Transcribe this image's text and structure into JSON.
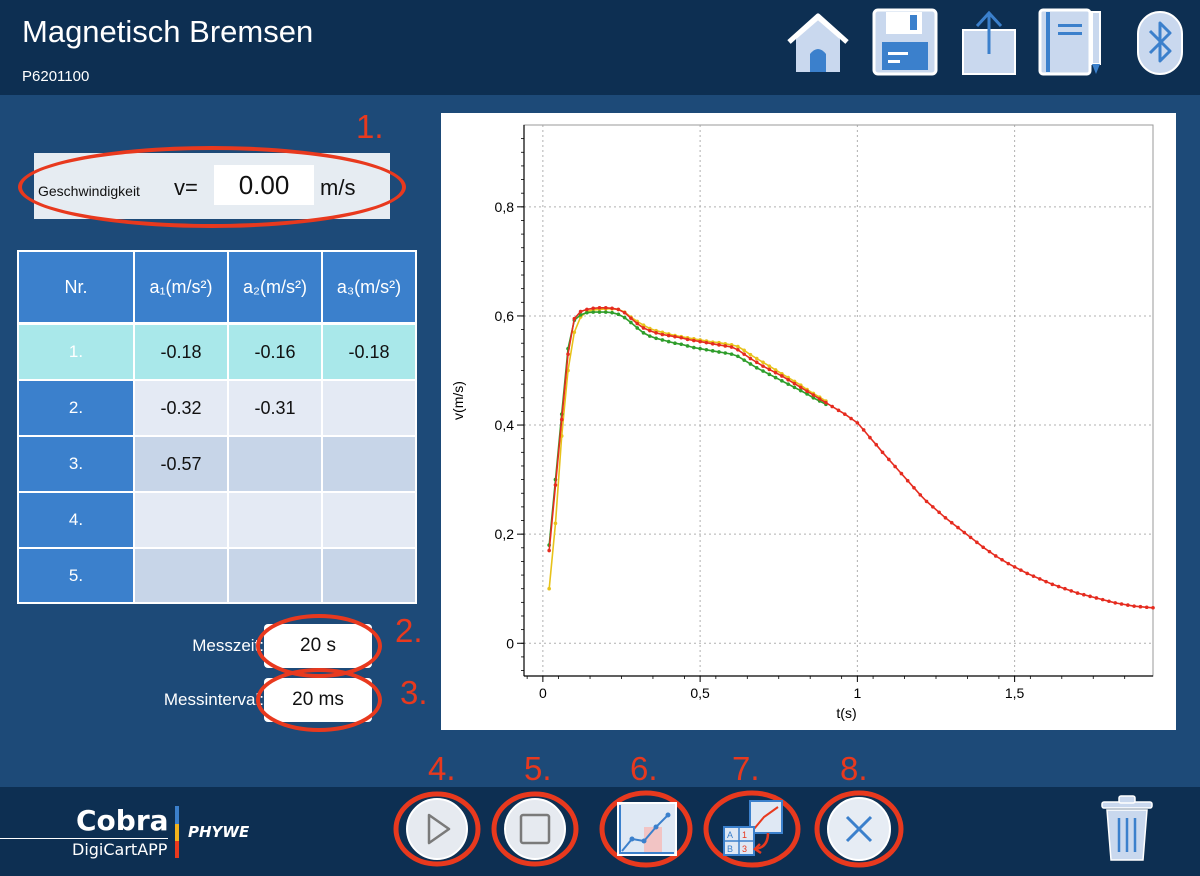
{
  "header": {
    "title": "Magnetisch Bremsen",
    "subtitle": "P6201100",
    "icons": [
      "home-icon",
      "save-icon",
      "export-icon",
      "notebook-icon",
      "bluetooth-icon"
    ]
  },
  "speed": {
    "label": "Geschwindigkeit",
    "var": "v=",
    "value": "0.00",
    "unit": "m/s"
  },
  "table": {
    "headers": [
      "Nr.",
      "a₁(m/s²)",
      "a₂(m/s²)",
      "a₃(m/s²)"
    ],
    "rows": [
      {
        "nr": "1.",
        "a1": "-0.18",
        "a2": "-0.16",
        "a3": "-0.18"
      },
      {
        "nr": "2.",
        "a1": "-0.32",
        "a2": "-0.31",
        "a3": ""
      },
      {
        "nr": "3.",
        "a1": "-0.57",
        "a2": "",
        "a3": ""
      },
      {
        "nr": "4.",
        "a1": "",
        "a2": "",
        "a3": ""
      },
      {
        "nr": "5.",
        "a1": "",
        "a2": "",
        "a3": ""
      }
    ]
  },
  "settings": {
    "messzeit_label": "Messzeit:",
    "messzeit_value": "20 s",
    "messinterval_label": "Messinterval:",
    "messinterval_value": "20 ms"
  },
  "annotations": [
    "1.",
    "2.",
    "3.",
    "4.",
    "5.",
    "6.",
    "7.",
    "8."
  ],
  "footer": {
    "logo_main": "Cobra",
    "logo_sub": "DigiCartAPP",
    "logo_brand": "PHYWE",
    "buttons": [
      "play-icon",
      "stop-icon",
      "graph-analysis-icon",
      "table-chart-icon",
      "close-icon",
      "trash-icon"
    ]
  },
  "colors": {
    "header_bg": "#0d2f52",
    "main_bg": "#1d4a78",
    "accent_blue": "#3b80cc",
    "annotation_red": "#e8391e",
    "series_red": "#e52b1f",
    "series_green": "#2e9d2a",
    "series_yellow": "#e7c21a"
  },
  "chart_data": {
    "type": "line",
    "xlabel": "t(s)",
    "ylabel": "v(m/s)",
    "xlim": [
      -0.06,
      1.94
    ],
    "ylim": [
      -0.06,
      0.95
    ],
    "xticks": [
      0,
      0.5,
      1,
      1.5
    ],
    "xtick_labels": [
      "0",
      "0,5",
      "1",
      "1,5"
    ],
    "yticks": [
      0,
      0.2,
      0.4,
      0.6,
      0.8
    ],
    "ytick_labels": [
      "0",
      "0,2",
      "0,4",
      "0,6",
      "0,8"
    ],
    "grid": true,
    "series": [
      {
        "color": "#e52b1f",
        "x": [
          0.02,
          0.04,
          0.06,
          0.08,
          0.1,
          0.12,
          0.14,
          0.16,
          0.18,
          0.2,
          0.22,
          0.24,
          0.26,
          0.28,
          0.3,
          0.32,
          0.34,
          0.36,
          0.38,
          0.4,
          0.42,
          0.44,
          0.46,
          0.48,
          0.5,
          0.52,
          0.54,
          0.56,
          0.58,
          0.6,
          0.62,
          0.64,
          0.66,
          0.68,
          0.7,
          0.72,
          0.74,
          0.76,
          0.78,
          0.8,
          0.82,
          0.84,
          0.86,
          0.88,
          0.9,
          0.92,
          0.94,
          0.96,
          0.98,
          1.0,
          1.02,
          1.04,
          1.06,
          1.08,
          1.1,
          1.12,
          1.14,
          1.16,
          1.18,
          1.2,
          1.22,
          1.24,
          1.26,
          1.28,
          1.3,
          1.32,
          1.34,
          1.36,
          1.38,
          1.4,
          1.42,
          1.44,
          1.46,
          1.48,
          1.5,
          1.52,
          1.54,
          1.56,
          1.58,
          1.6,
          1.62,
          1.64,
          1.66,
          1.68,
          1.7,
          1.72,
          1.74,
          1.76,
          1.78,
          1.8,
          1.82,
          1.84,
          1.86,
          1.88,
          1.9,
          1.92,
          1.94
        ],
        "y": [
          0.17,
          0.29,
          0.41,
          0.53,
          0.595,
          0.608,
          0.612,
          0.614,
          0.615,
          0.615,
          0.614,
          0.612,
          0.606,
          0.596,
          0.586,
          0.578,
          0.573,
          0.569,
          0.566,
          0.564,
          0.562,
          0.56,
          0.557,
          0.555,
          0.553,
          0.551,
          0.549,
          0.547,
          0.545,
          0.543,
          0.538,
          0.53,
          0.522,
          0.515,
          0.508,
          0.502,
          0.496,
          0.49,
          0.483,
          0.476,
          0.469,
          0.462,
          0.455,
          0.448,
          0.441,
          0.434,
          0.427,
          0.42,
          0.412,
          0.404,
          0.391,
          0.377,
          0.364,
          0.35,
          0.337,
          0.324,
          0.311,
          0.298,
          0.285,
          0.272,
          0.26,
          0.25,
          0.24,
          0.23,
          0.221,
          0.212,
          0.203,
          0.194,
          0.185,
          0.176,
          0.168,
          0.16,
          0.153,
          0.146,
          0.14,
          0.134,
          0.128,
          0.123,
          0.118,
          0.113,
          0.108,
          0.104,
          0.1,
          0.096,
          0.092,
          0.089,
          0.086,
          0.083,
          0.08,
          0.077,
          0.074,
          0.072,
          0.07,
          0.068,
          0.067,
          0.066,
          0.065
        ]
      },
      {
        "color": "#2e9d2a",
        "x": [
          0.02,
          0.04,
          0.06,
          0.08,
          0.1,
          0.12,
          0.14,
          0.16,
          0.18,
          0.2,
          0.22,
          0.24,
          0.26,
          0.28,
          0.3,
          0.32,
          0.34,
          0.36,
          0.38,
          0.4,
          0.42,
          0.44,
          0.46,
          0.48,
          0.5,
          0.52,
          0.54,
          0.56,
          0.58,
          0.6,
          0.62,
          0.64,
          0.66,
          0.68,
          0.7,
          0.72,
          0.74,
          0.76,
          0.78,
          0.8,
          0.82,
          0.84,
          0.86,
          0.88,
          0.9
        ],
        "y": [
          0.18,
          0.3,
          0.42,
          0.54,
          0.592,
          0.602,
          0.606,
          0.607,
          0.607,
          0.607,
          0.606,
          0.603,
          0.597,
          0.588,
          0.578,
          0.569,
          0.563,
          0.559,
          0.556,
          0.553,
          0.55,
          0.548,
          0.545,
          0.542,
          0.54,
          0.538,
          0.536,
          0.534,
          0.532,
          0.53,
          0.526,
          0.519,
          0.512,
          0.505,
          0.499,
          0.493,
          0.487,
          0.481,
          0.475,
          0.469,
          0.463,
          0.457,
          0.45,
          0.444,
          0.438
        ]
      },
      {
        "color": "#e7c21a",
        "x": [
          0.02,
          0.04,
          0.06,
          0.08,
          0.1,
          0.12,
          0.14,
          0.16,
          0.18,
          0.2,
          0.22,
          0.24,
          0.26,
          0.28,
          0.3,
          0.32,
          0.34,
          0.36,
          0.38,
          0.4,
          0.42,
          0.44,
          0.46,
          0.48,
          0.5,
          0.52,
          0.54,
          0.56,
          0.58,
          0.6,
          0.62,
          0.64,
          0.66,
          0.68,
          0.7,
          0.72,
          0.74,
          0.76,
          0.78,
          0.8,
          0.82,
          0.84,
          0.86,
          0.88,
          0.9
        ],
        "y": [
          0.1,
          0.22,
          0.38,
          0.5,
          0.57,
          0.598,
          0.608,
          0.611,
          0.612,
          0.613,
          0.613,
          0.612,
          0.607,
          0.598,
          0.59,
          0.583,
          0.577,
          0.573,
          0.57,
          0.567,
          0.564,
          0.562,
          0.56,
          0.558,
          0.556,
          0.554,
          0.552,
          0.551,
          0.549,
          0.547,
          0.544,
          0.537,
          0.529,
          0.522,
          0.515,
          0.508,
          0.501,
          0.494,
          0.487,
          0.48,
          0.473,
          0.465,
          0.458,
          0.451,
          0.444
        ]
      }
    ]
  }
}
